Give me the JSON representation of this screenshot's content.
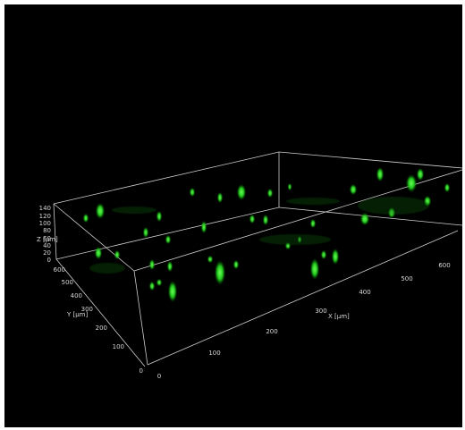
{
  "axes": {
    "z": {
      "label": "Z [µm]",
      "ticks": [
        "140",
        "120",
        "100",
        "80",
        "60",
        "40",
        "20",
        "0"
      ]
    },
    "y": {
      "label": "Y [µm]",
      "ticks": [
        "600",
        "500",
        "400",
        "300",
        "200",
        "100",
        "0"
      ]
    },
    "x": {
      "label": "X [µm]",
      "ticks": [
        "0",
        "100",
        "200",
        "300",
        "400",
        "500",
        "600"
      ]
    }
  }
}
